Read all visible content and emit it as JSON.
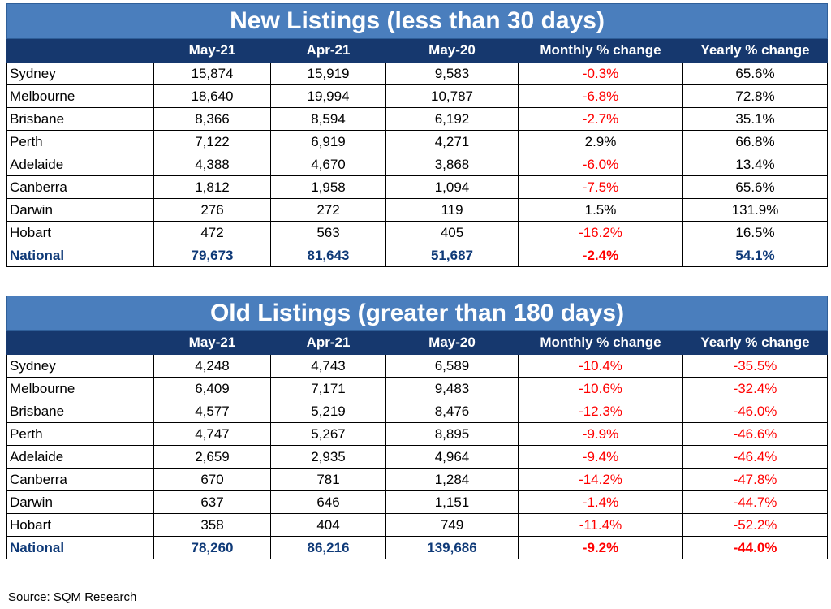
{
  "columns": [
    "May-21",
    "Apr-21",
    "May-20",
    "Monthly % change",
    "Yearly % change"
  ],
  "new_listings": {
    "title": "New Listings (less than 30 days)",
    "rows": [
      {
        "city": "Sydney",
        "may21": "15,874",
        "apr21": "15,919",
        "may20": "9,583",
        "monthly": "-0.3%",
        "yearly": "65.6%"
      },
      {
        "city": "Melbourne",
        "may21": "18,640",
        "apr21": "19,994",
        "may20": "10,787",
        "monthly": "-6.8%",
        "yearly": "72.8%"
      },
      {
        "city": "Brisbane",
        "may21": "8,366",
        "apr21": "8,594",
        "may20": "6,192",
        "monthly": "-2.7%",
        "yearly": "35.1%"
      },
      {
        "city": "Perth",
        "may21": "7,122",
        "apr21": "6,919",
        "may20": "4,271",
        "monthly": "2.9%",
        "yearly": "66.8%"
      },
      {
        "city": "Adelaide",
        "may21": "4,388",
        "apr21": "4,670",
        "may20": "3,868",
        "monthly": "-6.0%",
        "yearly": "13.4%"
      },
      {
        "city": "Canberra",
        "may21": "1,812",
        "apr21": "1,958",
        "may20": "1,094",
        "monthly": "-7.5%",
        "yearly": "65.6%"
      },
      {
        "city": "Darwin",
        "may21": "276",
        "apr21": "272",
        "may20": "119",
        "monthly": "1.5%",
        "yearly": "131.9%"
      },
      {
        "city": "Hobart",
        "may21": "472",
        "apr21": "563",
        "may20": "405",
        "monthly": "-16.2%",
        "yearly": "16.5%"
      },
      {
        "city": "National",
        "may21": "79,673",
        "apr21": "81,643",
        "may20": "51,687",
        "monthly": "-2.4%",
        "yearly": "54.1%"
      }
    ]
  },
  "old_listings": {
    "title": "Old Listings (greater than 180 days)",
    "rows": [
      {
        "city": "Sydney",
        "may21": "4,248",
        "apr21": "4,743",
        "may20": "6,589",
        "monthly": "-10.4%",
        "yearly": "-35.5%"
      },
      {
        "city": "Melbourne",
        "may21": "6,409",
        "apr21": "7,171",
        "may20": "9,483",
        "monthly": "-10.6%",
        "yearly": "-32.4%"
      },
      {
        "city": "Brisbane",
        "may21": "4,577",
        "apr21": "5,219",
        "may20": "8,476",
        "monthly": "-12.3%",
        "yearly": "-46.0%"
      },
      {
        "city": "Perth",
        "may21": "4,747",
        "apr21": "5,267",
        "may20": "8,895",
        "monthly": "-9.9%",
        "yearly": "-46.6%"
      },
      {
        "city": "Adelaide",
        "may21": "2,659",
        "apr21": "2,935",
        "may20": "4,964",
        "monthly": "-9.4%",
        "yearly": "-46.4%"
      },
      {
        "city": "Canberra",
        "may21": "670",
        "apr21": "781",
        "may20": "1,284",
        "monthly": "-14.2%",
        "yearly": "-47.8%"
      },
      {
        "city": "Darwin",
        "may21": "637",
        "apr21": "646",
        "may20": "1,151",
        "monthly": "-1.4%",
        "yearly": "-44.7%"
      },
      {
        "city": "Hobart",
        "may21": "358",
        "apr21": "404",
        "may20": "749",
        "monthly": "-11.4%",
        "yearly": "-52.2%"
      },
      {
        "city": "National",
        "may21": "78,260",
        "apr21": "86,216",
        "may20": "139,686",
        "monthly": "-9.2%",
        "yearly": "-44.0%"
      }
    ]
  },
  "colors": {
    "title_bg": "#4a7ebd",
    "header_bg": "#16386e",
    "negative": "#ff0000",
    "national_text": "#0f3a78"
  },
  "source": "Source: SQM Research"
}
